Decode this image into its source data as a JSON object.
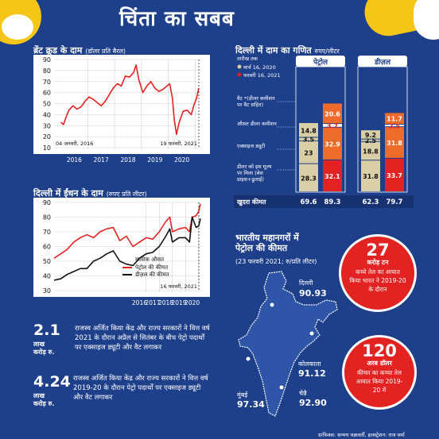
{
  "title": "चिंता का सबब",
  "brent": {
    "heading": "ब्रेंट क्रूड के दाम",
    "unit": "(डॉलर प्रति बैरल)"
  },
  "fuel": {
    "heading": "दिल्ली में ईंधन के दाम",
    "unit": "(रुपए प्रति लीटर)",
    "legend_title": "मासिक औसत",
    "petrol_label": "पेट्रोल की कीमत",
    "diesel_label": "डीज़ल की कीमत"
  },
  "stats": [
    {
      "value": "2.1",
      "unit1": "लाख",
      "unit2": "करोड़ रु.",
      "text": "राजस्व अर्जित किया केंद्र और राज्य सरकारों ने वित्त वर्ष 2021 के दौरान अप्रैल से सितंबर के बीच पेट्रो पदार्थों पर एक्साइज ड्यूटी और वैट लगाकर"
    },
    {
      "value": "4.24",
      "unit1": "लाख",
      "unit2": "करोड़ रु.",
      "text": "राजस्व अर्जित किया केंद्र और राज्य सरकारों ने वित्त वर्ष 2019-20 के दौरान पेट्रो पदार्थों पर एक्साइज ड्यूटी और वैट लगाकर"
    }
  ],
  "price_math": {
    "heading": "दिल्ली में दाम का गणित",
    "unit": "रुपए/लीटर",
    "date_label": "तारीख तक",
    "date1": "मार्च 16, 2020",
    "date2": "फरवरी 16, 2021",
    "petrol_tab": "पेट्रोल",
    "diesel_tab": "डीज़ल",
    "row_labels": [
      "वैट *(डीलर कमीशन पर वैट सहित)",
      "औसत डीलर कमीशन",
      "एक्साइज ड्यूटी",
      "डीलर को इस मूल्य पर मिला (बेस प्राइस+ढुलाई)"
    ],
    "retail_label": "खुदरा कीमत"
  },
  "metros": {
    "heading1": "भारतीय महानगरों में",
    "heading2": "पेट्रोल की कीमत",
    "sub": "(23 फरवरी 2021; रु/प्रति लीटर)",
    "cities": [
      {
        "name": "दिल्ली",
        "price": "90.93"
      },
      {
        "name": "कोलकाता",
        "price": "91.12"
      },
      {
        "name": "मुंबई",
        "price": "97.34"
      },
      {
        "name": "चेन्नै",
        "price": "92.90"
      }
    ]
  },
  "circles": [
    {
      "value": "27",
      "unit": "करोड़ टन",
      "text": "कच्चे तेल का आयात किया भारत ने 2019-20 के दौरान"
    },
    {
      "value": "120",
      "unit": "अरब डॉलर",
      "text": "कीमत का कच्चा तेल आयात किया 2019-20 में"
    }
  ],
  "credit": "ग्राफिक्स: सन्मय चक्रवर्ती, इलस्ट्रेशन: राज वर्मा",
  "colors": {
    "background": "#1e3f8a",
    "red": "#e32222",
    "black": "#111111",
    "beige": "#d8cfa6",
    "orange": "#ee6b2a",
    "yellow": "#f5c518"
  },
  "chart_data": [
    {
      "type": "line",
      "title": "ब्रेंट क्रूड के दाम",
      "ylabel": "(डॉलर प्रति बैरल)",
      "ylim": [
        10,
        90
      ],
      "yticks": [
        10,
        20,
        30,
        40,
        50,
        60,
        70,
        80,
        90
      ],
      "xticks": [
        "2016",
        "2017",
        "2018",
        "2019",
        "2020",
        "2021"
      ],
      "start_label": "04 जनवरी, 2016",
      "end_label": "19 फरवरी, 2021",
      "grid": true,
      "series": [
        {
          "x": [
            2016.0,
            2016.1,
            2016.2,
            2016.3,
            2016.45,
            2016.6,
            2016.75,
            2016.9,
            2017.05,
            2017.2,
            2017.35,
            2017.5,
            2017.65,
            2017.8,
            2017.95,
            2018.1,
            2018.25,
            2018.4,
            2018.55,
            2018.7,
            2018.8,
            2018.9,
            2019.05,
            2019.2,
            2019.35,
            2019.5,
            2019.65,
            2019.8,
            2019.95,
            2020.05,
            2020.15,
            2020.22,
            2020.3,
            2020.4,
            2020.55,
            2020.7,
            2020.85,
            2020.95,
            2021.05,
            2021.13
          ],
          "y": [
            33,
            31,
            38,
            44,
            48,
            45,
            47,
            52,
            56,
            54,
            51,
            48,
            52,
            58,
            64,
            68,
            66,
            75,
            74,
            78,
            85,
            72,
            60,
            66,
            70,
            64,
            61,
            63,
            66,
            68,
            55,
            35,
            22,
            33,
            43,
            44,
            40,
            49,
            55,
            64
          ]
        }
      ]
    },
    {
      "type": "line",
      "title": "दिल्ली में ईंधन के दाम",
      "ylabel": "(रुपए प्रति लीटर)",
      "ylim": [
        30,
        90
      ],
      "yticks": [
        30,
        40,
        50,
        60,
        70,
        80,
        90
      ],
      "xticks": [
        "2016",
        "2017",
        "2018",
        "2019",
        "2020",
        "2021"
      ],
      "legend_title": "मासिक औसत",
      "end_label": "16 फरवरी, 2021",
      "grid": true,
      "series": [
        {
          "name": "पेट्रोल की कीमत",
          "x": [
            2010.0,
            2010.5,
            2011.0,
            2011.5,
            2012.0,
            2012.5,
            2013.0,
            2013.5,
            2014.0,
            2014.5,
            2015.0,
            2015.5,
            2016.0,
            2016.5,
            2017.0,
            2017.5,
            2018.0,
            2018.5,
            2018.8,
            2019.0,
            2019.5,
            2020.0,
            2020.3,
            2020.5,
            2020.8,
            2021.0,
            2021.13
          ],
          "y": [
            52,
            55,
            58,
            63,
            66,
            68,
            66,
            70,
            72,
            73,
            64,
            67,
            60,
            63,
            66,
            65,
            70,
            77,
            80,
            70,
            72,
            73,
            70,
            80,
            81,
            84,
            89
          ]
        },
        {
          "name": "डीज़ल की कीमत",
          "x": [
            2010.0,
            2010.5,
            2011.0,
            2011.5,
            2012.0,
            2012.5,
            2013.0,
            2013.5,
            2014.0,
            2014.5,
            2015.0,
            2015.5,
            2016.0,
            2016.5,
            2017.0,
            2017.5,
            2018.0,
            2018.5,
            2018.8,
            2019.0,
            2019.5,
            2020.0,
            2020.3,
            2020.5,
            2020.8,
            2021.0,
            2021.13
          ],
          "y": [
            37,
            38,
            41,
            43,
            45,
            45,
            50,
            52,
            55,
            57,
            50,
            48,
            47,
            52,
            55,
            56,
            60,
            67,
            72,
            63,
            66,
            66,
            63,
            80,
            73,
            74,
            79
          ]
        }
      ]
    },
    {
      "type": "bar",
      "title": "दिल्ली में दाम का गणित",
      "ylabel": "रुपए/लीटर",
      "categories": [
        "पेट्रोल मार्च 16, 2020",
        "पेट्रोल फरवरी 16, 2021",
        "डीज़ल मार्च 16, 2020",
        "डीज़ल फरवरी 16, 2021"
      ],
      "series": [
        {
          "name": "डीलर को इस मूल्य पर मिला (बेस प्राइस+ढुलाई)",
          "values": [
            28.3,
            32.1,
            31.8,
            33.7
          ]
        },
        {
          "name": "एक्साइज ड्यूटी",
          "values": [
            23,
            32.9,
            18.8,
            31.8
          ]
        },
        {
          "name": "औसत डीलर कमीशन",
          "values": [
            3.5,
            3.7,
            2.5,
            2.5
          ]
        },
        {
          "name": "वैट *(डीलर कमीशन पर वैट सहित)",
          "values": [
            14.8,
            20.6,
            9.2,
            11.7
          ]
        }
      ],
      "totals": [
        69.6,
        89.3,
        62.3,
        79.7
      ]
    }
  ]
}
